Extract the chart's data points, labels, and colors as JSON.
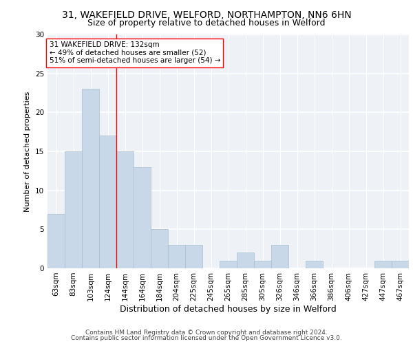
{
  "title1": "31, WAKEFIELD DRIVE, WELFORD, NORTHAMPTON, NN6 6HN",
  "title2": "Size of property relative to detached houses in Welford",
  "xlabel": "Distribution of detached houses by size in Welford",
  "ylabel": "Number of detached properties",
  "categories": [
    "63sqm",
    "83sqm",
    "103sqm",
    "124sqm",
    "144sqm",
    "164sqm",
    "184sqm",
    "204sqm",
    "225sqm",
    "245sqm",
    "265sqm",
    "285sqm",
    "305sqm",
    "326sqm",
    "346sqm",
    "366sqm",
    "386sqm",
    "406sqm",
    "427sqm",
    "447sqm",
    "467sqm"
  ],
  "values": [
    7,
    15,
    23,
    17,
    15,
    13,
    5,
    3,
    3,
    0,
    1,
    2,
    1,
    3,
    0,
    1,
    0,
    0,
    0,
    1,
    1
  ],
  "bar_color": "#c8d8e8",
  "bar_edge_color": "#a8bfcf",
  "vline_x": 3.5,
  "vline_color": "red",
  "annotation_text": "31 WAKEFIELD DRIVE: 132sqm\n← 49% of detached houses are smaller (52)\n51% of semi-detached houses are larger (54) →",
  "annotation_box_color": "white",
  "annotation_box_edge_color": "red",
  "ylim": [
    0,
    30
  ],
  "yticks": [
    0,
    5,
    10,
    15,
    20,
    25,
    30
  ],
  "footnote1": "Contains HM Land Registry data © Crown copyright and database right 2024.",
  "footnote2": "Contains public sector information licensed under the Open Government Licence v3.0.",
  "background_color": "#eef2f7",
  "grid_color": "white",
  "title1_fontsize": 10,
  "title2_fontsize": 9,
  "xlabel_fontsize": 9,
  "ylabel_fontsize": 8,
  "footnote_fontsize": 6.5,
  "tick_fontsize": 7.5,
  "annot_fontsize": 7.5
}
